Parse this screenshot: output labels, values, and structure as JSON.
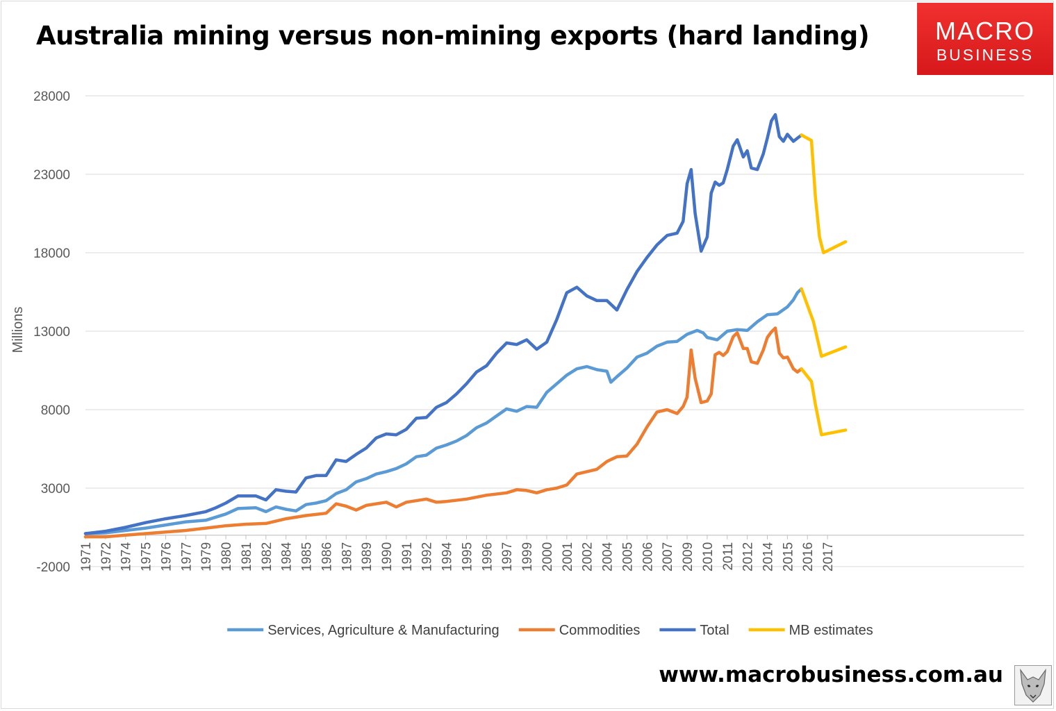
{
  "header": {
    "title": "Australia mining versus non-mining exports (hard landing)"
  },
  "logo": {
    "line1": "MACRO",
    "line2": "BUSINESS",
    "color": "#e0201f"
  },
  "footer": {
    "website": "www.macrobusiness.com.au"
  },
  "chart_data": {
    "type": "line",
    "title": "Australia mining versus non-mining exports (hard landing)",
    "xlabel": "",
    "ylabel": "Millions",
    "ylim": [
      -2000,
      28000
    ],
    "yticks": [
      -2000,
      3000,
      8000,
      13000,
      18000,
      23000,
      28000
    ],
    "xlim": [
      1971,
      2017.8
    ],
    "x_ticks": [
      {
        "x": 1971,
        "label": "1971"
      },
      {
        "x": 1972,
        "label": "1972"
      },
      {
        "x": 1973,
        "label": "1974"
      },
      {
        "x": 1974,
        "label": "1975"
      },
      {
        "x": 1975,
        "label": "1976"
      },
      {
        "x": 1976,
        "label": "1977"
      },
      {
        "x": 1977,
        "label": "1979"
      },
      {
        "x": 1978,
        "label": "1980"
      },
      {
        "x": 1979,
        "label": "1981"
      },
      {
        "x": 1980,
        "label": "1982"
      },
      {
        "x": 1981,
        "label": "1984"
      },
      {
        "x": 1982,
        "label": "1985"
      },
      {
        "x": 1983,
        "label": "1986"
      },
      {
        "x": 1984,
        "label": "1987"
      },
      {
        "x": 1985,
        "label": "1989"
      },
      {
        "x": 1986,
        "label": "1990"
      },
      {
        "x": 1987,
        "label": "1991"
      },
      {
        "x": 1988,
        "label": "1992"
      },
      {
        "x": 1989,
        "label": "1994"
      },
      {
        "x": 1990,
        "label": "1995"
      },
      {
        "x": 1991,
        "label": "1996"
      },
      {
        "x": 1992,
        "label": "1997"
      },
      {
        "x": 1993,
        "label": "1999"
      },
      {
        "x": 1994,
        "label": "2000"
      },
      {
        "x": 1995,
        "label": "2001"
      },
      {
        "x": 1996,
        "label": "2002"
      },
      {
        "x": 1997,
        "label": "2004"
      },
      {
        "x": 1998,
        "label": "2005"
      },
      {
        "x": 1999,
        "label": "2006"
      },
      {
        "x": 2000,
        "label": "2007"
      },
      {
        "x": 2001,
        "label": "2009"
      },
      {
        "x": 2002,
        "label": "2010"
      },
      {
        "x": 2003,
        "label": "2011"
      },
      {
        "x": 2004,
        "label": "2012"
      },
      {
        "x": 2005,
        "label": "2014"
      },
      {
        "x": 2006,
        "label": "2015"
      },
      {
        "x": 2007,
        "label": "2016"
      },
      {
        "x": 2008,
        "label": "2017"
      }
    ],
    "grid": true,
    "legend_position": "bottom",
    "series": [
      {
        "name": "Services, Agriculture & Manufacturing",
        "color": "#5b9bd5",
        "points": [
          [
            1971.0,
            100
          ],
          [
            1972.0,
            150
          ],
          [
            1973.0,
            300
          ],
          [
            1974.0,
            450
          ],
          [
            1975.0,
            650
          ],
          [
            1976.0,
            850
          ],
          [
            1977.0,
            950
          ],
          [
            1977.5,
            1150
          ],
          [
            1978.0,
            1350
          ],
          [
            1978.6,
            1700
          ],
          [
            1979.5,
            1750
          ],
          [
            1980.0,
            1500
          ],
          [
            1980.5,
            1800
          ],
          [
            1981.0,
            1650
          ],
          [
            1981.5,
            1550
          ],
          [
            1982.0,
            1950
          ],
          [
            1982.5,
            2050
          ],
          [
            1983.0,
            2200
          ],
          [
            1983.5,
            2650
          ],
          [
            1984.0,
            2900
          ],
          [
            1984.5,
            3400
          ],
          [
            1985.0,
            3600
          ],
          [
            1985.5,
            3900
          ],
          [
            1986.0,
            4050
          ],
          [
            1986.5,
            4250
          ],
          [
            1987.0,
            4550
          ],
          [
            1987.5,
            5000
          ],
          [
            1988.0,
            5100
          ],
          [
            1988.5,
            5550
          ],
          [
            1989.0,
            5750
          ],
          [
            1989.5,
            6000
          ],
          [
            1990.0,
            6350
          ],
          [
            1990.5,
            6850
          ],
          [
            1991.0,
            7150
          ],
          [
            1991.5,
            7600
          ],
          [
            1992.0,
            8050
          ],
          [
            1992.5,
            7900
          ],
          [
            1993.0,
            8200
          ],
          [
            1993.5,
            8150
          ],
          [
            1994.0,
            9100
          ],
          [
            1995.0,
            10200
          ],
          [
            1995.5,
            10600
          ],
          [
            1996.0,
            10750
          ],
          [
            1996.5,
            10550
          ],
          [
            1997.0,
            10450
          ],
          [
            1997.2,
            9750
          ],
          [
            1997.5,
            10100
          ],
          [
            1998.0,
            10650
          ],
          [
            1998.5,
            11350
          ],
          [
            1999.0,
            11600
          ],
          [
            1999.5,
            12050
          ],
          [
            2000.0,
            12300
          ],
          [
            2000.5,
            12350
          ],
          [
            2001.0,
            12800
          ],
          [
            2001.5,
            13050
          ],
          [
            2001.8,
            12900
          ],
          [
            2002.0,
            12600
          ],
          [
            2002.5,
            12450
          ],
          [
            2003.0,
            13000
          ],
          [
            2003.5,
            13100
          ],
          [
            2004.0,
            13050
          ],
          [
            2004.5,
            13600
          ],
          [
            2005.0,
            14050
          ],
          [
            2005.5,
            14100
          ],
          [
            2006.0,
            14550
          ],
          [
            2006.3,
            15000
          ],
          [
            2006.5,
            15450
          ],
          [
            2006.7,
            15700
          ]
        ]
      },
      {
        "name": "Commodities",
        "color": "#ed7d31",
        "points": [
          [
            1971.0,
            -100
          ],
          [
            1972.0,
            -100
          ],
          [
            1973.0,
            0
          ],
          [
            1974.0,
            100
          ],
          [
            1975.0,
            200
          ],
          [
            1976.0,
            300
          ],
          [
            1977.0,
            450
          ],
          [
            1978.0,
            600
          ],
          [
            1979.0,
            700
          ],
          [
            1980.0,
            750
          ],
          [
            1981.0,
            1050
          ],
          [
            1982.0,
            1250
          ],
          [
            1983.0,
            1400
          ],
          [
            1983.5,
            2000
          ],
          [
            1984.0,
            1850
          ],
          [
            1984.5,
            1600
          ],
          [
            1985.0,
            1900
          ],
          [
            1986.0,
            2100
          ],
          [
            1986.5,
            1800
          ],
          [
            1987.0,
            2100
          ],
          [
            1988.0,
            2300
          ],
          [
            1988.5,
            2100
          ],
          [
            1989.0,
            2150
          ],
          [
            1990.0,
            2300
          ],
          [
            1991.0,
            2550
          ],
          [
            1992.0,
            2700
          ],
          [
            1992.5,
            2900
          ],
          [
            1993.0,
            2850
          ],
          [
            1993.5,
            2700
          ],
          [
            1994.0,
            2900
          ],
          [
            1994.5,
            3000
          ],
          [
            1995.0,
            3200
          ],
          [
            1995.5,
            3900
          ],
          [
            1996.0,
            4050
          ],
          [
            1996.5,
            4200
          ],
          [
            1997.0,
            4700
          ],
          [
            1997.5,
            5000
          ],
          [
            1998.0,
            5050
          ],
          [
            1998.5,
            5800
          ],
          [
            1999.0,
            6900
          ],
          [
            1999.5,
            7850
          ],
          [
            2000.0,
            8000
          ],
          [
            2000.5,
            7750
          ],
          [
            2000.8,
            8200
          ],
          [
            2001.0,
            8800
          ],
          [
            2001.2,
            11800
          ],
          [
            2001.4,
            10000
          ],
          [
            2001.7,
            8450
          ],
          [
            2002.0,
            8550
          ],
          [
            2002.2,
            9000
          ],
          [
            2002.4,
            11500
          ],
          [
            2002.6,
            11650
          ],
          [
            2002.8,
            11450
          ],
          [
            2003.0,
            11700
          ],
          [
            2003.3,
            12650
          ],
          [
            2003.5,
            12900
          ],
          [
            2003.8,
            11900
          ],
          [
            2004.0,
            11900
          ],
          [
            2004.2,
            11050
          ],
          [
            2004.5,
            10950
          ],
          [
            2004.8,
            11800
          ],
          [
            2005.0,
            12600
          ],
          [
            2005.2,
            12950
          ],
          [
            2005.4,
            13200
          ],
          [
            2005.6,
            11600
          ],
          [
            2005.8,
            11300
          ],
          [
            2006.0,
            11350
          ],
          [
            2006.3,
            10600
          ],
          [
            2006.5,
            10400
          ],
          [
            2006.7,
            10600
          ]
        ]
      },
      {
        "name": "Total",
        "color": "#4472c4",
        "points": [
          [
            1971.0,
            100
          ],
          [
            1972.0,
            250
          ],
          [
            1973.0,
            500
          ],
          [
            1974.0,
            800
          ],
          [
            1975.0,
            1050
          ],
          [
            1976.0,
            1250
          ],
          [
            1977.0,
            1500
          ],
          [
            1977.5,
            1750
          ],
          [
            1978.0,
            2050
          ],
          [
            1978.6,
            2500
          ],
          [
            1979.5,
            2500
          ],
          [
            1980.0,
            2250
          ],
          [
            1980.5,
            2900
          ],
          [
            1981.0,
            2800
          ],
          [
            1981.5,
            2750
          ],
          [
            1982.0,
            3650
          ],
          [
            1982.5,
            3800
          ],
          [
            1983.0,
            3800
          ],
          [
            1983.5,
            4800
          ],
          [
            1984.0,
            4700
          ],
          [
            1984.5,
            5150
          ],
          [
            1985.0,
            5550
          ],
          [
            1985.5,
            6200
          ],
          [
            1986.0,
            6450
          ],
          [
            1986.5,
            6400
          ],
          [
            1987.0,
            6750
          ],
          [
            1987.5,
            7450
          ],
          [
            1988.0,
            7500
          ],
          [
            1988.5,
            8150
          ],
          [
            1989.0,
            8450
          ],
          [
            1989.5,
            9000
          ],
          [
            1990.0,
            9650
          ],
          [
            1990.5,
            10400
          ],
          [
            1991.0,
            10800
          ],
          [
            1991.5,
            11600
          ],
          [
            1992.0,
            12250
          ],
          [
            1992.5,
            12150
          ],
          [
            1993.0,
            12450
          ],
          [
            1993.5,
            11850
          ],
          [
            1994.0,
            12300
          ],
          [
            1994.5,
            13750
          ],
          [
            1995.0,
            15450
          ],
          [
            1995.5,
            15800
          ],
          [
            1996.0,
            15250
          ],
          [
            1996.5,
            14950
          ],
          [
            1997.0,
            14950
          ],
          [
            1997.5,
            14350
          ],
          [
            1998.0,
            15650
          ],
          [
            1998.5,
            16800
          ],
          [
            1999.0,
            17700
          ],
          [
            1999.5,
            18500
          ],
          [
            2000.0,
            19100
          ],
          [
            2000.5,
            19250
          ],
          [
            2000.8,
            20000
          ],
          [
            2001.0,
            22400
          ],
          [
            2001.2,
            23300
          ],
          [
            2001.4,
            20500
          ],
          [
            2001.7,
            18100
          ],
          [
            2002.0,
            19000
          ],
          [
            2002.2,
            21800
          ],
          [
            2002.4,
            22500
          ],
          [
            2002.6,
            22300
          ],
          [
            2002.8,
            22450
          ],
          [
            2003.0,
            23300
          ],
          [
            2003.3,
            24800
          ],
          [
            2003.5,
            25200
          ],
          [
            2003.8,
            24100
          ],
          [
            2004.0,
            24500
          ],
          [
            2004.2,
            23400
          ],
          [
            2004.5,
            23300
          ],
          [
            2004.8,
            24300
          ],
          [
            2005.0,
            25300
          ],
          [
            2005.2,
            26400
          ],
          [
            2005.4,
            26800
          ],
          [
            2005.6,
            25400
          ],
          [
            2005.8,
            25100
          ],
          [
            2006.0,
            25550
          ],
          [
            2006.3,
            25100
          ],
          [
            2006.5,
            25300
          ],
          [
            2006.7,
            25500
          ]
        ]
      },
      {
        "name": "MB estimates",
        "color": "#ffc000",
        "segments": [
          [
            [
              2006.7,
              25500
            ],
            [
              2007.2,
              25150
            ],
            [
              2007.4,
              21500
            ],
            [
              2007.6,
              19000
            ],
            [
              2007.8,
              18000
            ],
            [
              2008.9,
              18700
            ]
          ],
          [
            [
              2006.7,
              15700
            ],
            [
              2007.3,
              13600
            ],
            [
              2007.7,
              11400
            ],
            [
              2008.9,
              12000
            ]
          ],
          [
            [
              2006.7,
              10600
            ],
            [
              2007.2,
              9800
            ],
            [
              2007.4,
              8300
            ],
            [
              2007.7,
              6400
            ],
            [
              2008.9,
              6700
            ]
          ]
        ]
      }
    ]
  }
}
